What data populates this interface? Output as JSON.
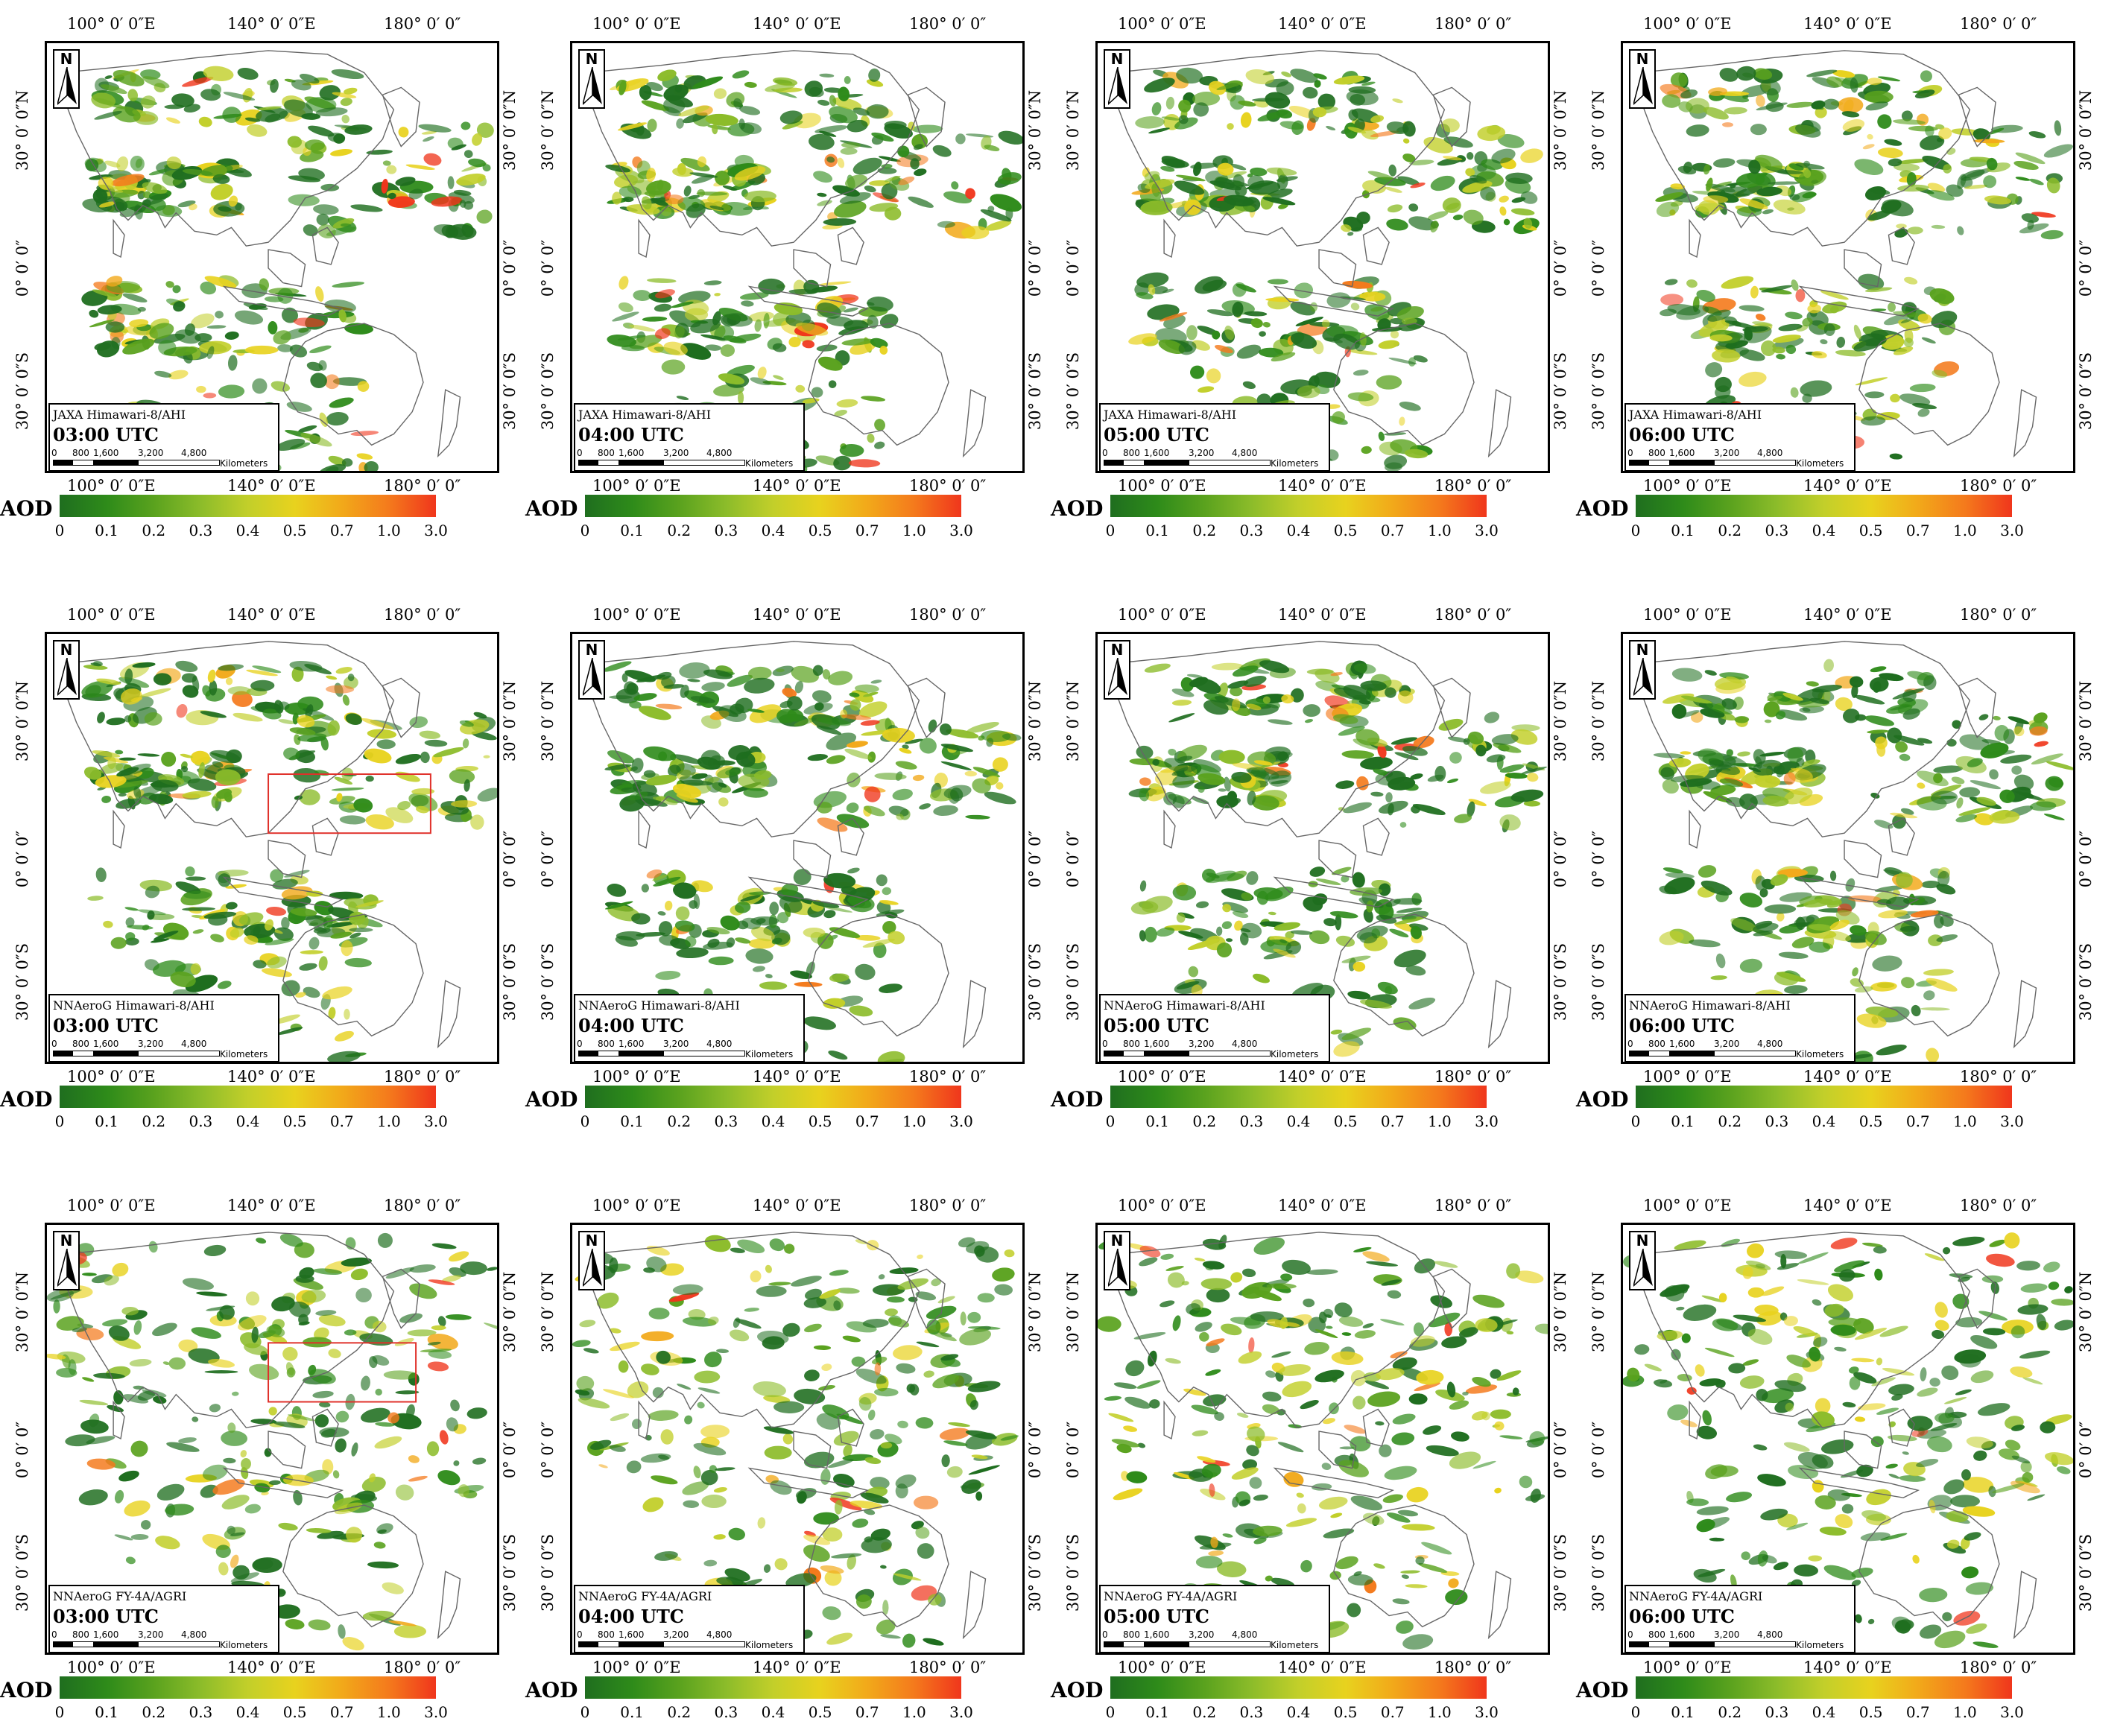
{
  "colors": {
    "ocean": "#ffffff",
    "land_outline": "#666666",
    "colorbar": [
      "#1f6e1f",
      "#2e8b1a",
      "#5aa21e",
      "#8cbc2a",
      "#c2cf2a",
      "#e8d21e",
      "#f2a91a",
      "#f47a1c",
      "#f0361c"
    ],
    "highlight_box": "#e0302a"
  },
  "axes": {
    "lon_top": [
      "100° 0′ 0″E",
      "140° 0′ 0″E",
      "180° 0′ 0″"
    ],
    "lon_bottom": [
      "100° 0′ 0″E",
      "140° 0′ 0″E",
      "180° 0′ 0″"
    ],
    "lat": [
      "30° 0′ 0″N",
      "0° 0′ 0″",
      "30° 0′ 0″S"
    ]
  },
  "north_arrow": {
    "label": "N",
    "icon": "north-arrow-icon"
  },
  "scale_bar": {
    "ticks": [
      "0",
      "800",
      "1,600",
      "3,200",
      "4,800"
    ],
    "unit": "Kilometers"
  },
  "colorbar": {
    "label": "AOD",
    "ticks": [
      "0",
      "0.1",
      "0.2",
      "0.3",
      "0.4",
      "0.5",
      "0.7",
      "1.0",
      "3.0"
    ]
  },
  "rows": [
    {
      "product": "JAXA Himawari-8/AHI",
      "has_highlight_box": false,
      "panels": [
        {
          "time": "03:00 UTC"
        },
        {
          "time": "04:00 UTC"
        },
        {
          "time": "05:00 UTC"
        },
        {
          "time": "06:00 UTC"
        }
      ]
    },
    {
      "product": "NNAeroG Himawari-8/AHI",
      "has_highlight_box": true,
      "panels": [
        {
          "time": "03:00 UTC"
        },
        {
          "time": "04:00 UTC"
        },
        {
          "time": "05:00 UTC"
        },
        {
          "time": "06:00 UTC"
        }
      ]
    },
    {
      "product": "NNAeroG FY-4A/AGRI",
      "has_highlight_box": true,
      "panels": [
        {
          "time": "03:00 UTC"
        },
        {
          "time": "04:00 UTC"
        },
        {
          "time": "05:00 UTC"
        },
        {
          "time": "06:00 UTC"
        }
      ]
    }
  ]
}
